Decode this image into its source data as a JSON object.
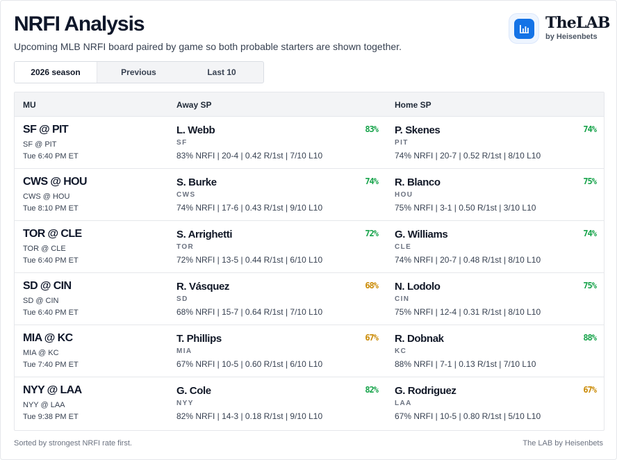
{
  "header": {
    "title": "NRFI Analysis",
    "subtitle": "Upcoming MLB NRFI board paired by game so both probable starters are shown together."
  },
  "brand": {
    "name": "TheLAB",
    "byline": "by Heisenbets",
    "logo_icon": "bar-chart-icon",
    "accent": "#1473e6"
  },
  "tabs": [
    {
      "label": "2026 season",
      "active": true
    },
    {
      "label": "Previous",
      "active": false
    },
    {
      "label": "Last 10",
      "active": false
    }
  ],
  "columns": {
    "mu": "MU",
    "away": "Away SP",
    "home": "Home SP"
  },
  "colors": {
    "good": "#16a34a",
    "fair": "#ca8a04"
  },
  "rows": [
    {
      "matchup": "SF @ PIT",
      "matchup_sub": "SF @ PIT",
      "time": "Tue 6:40 PM ET",
      "away": {
        "name": "L. Webb",
        "team": "SF",
        "pct": "83%",
        "stats": "83% NRFI | 20-4 | 0.42 R/1st | 7/10 L10"
      },
      "home": {
        "name": "P. Skenes",
        "team": "PIT",
        "pct": "74%",
        "stats": "74% NRFI | 20-7 | 0.52 R/1st | 8/10 L10"
      }
    },
    {
      "matchup": "CWS @ HOU",
      "matchup_sub": "CWS @ HOU",
      "time": "Tue 8:10 PM ET",
      "away": {
        "name": "S. Burke",
        "team": "CWS",
        "pct": "74%",
        "stats": "74% NRFI | 17-6 | 0.43 R/1st | 9/10 L10"
      },
      "home": {
        "name": "R. Blanco",
        "team": "HOU",
        "pct": "75%",
        "stats": "75% NRFI | 3-1 | 0.50 R/1st | 3/10 L10"
      }
    },
    {
      "matchup": "TOR @ CLE",
      "matchup_sub": "TOR @ CLE",
      "time": "Tue 6:40 PM ET",
      "away": {
        "name": "S. Arrighetti",
        "team": "TOR",
        "pct": "72%",
        "stats": "72% NRFI | 13-5 | 0.44 R/1st | 6/10 L10"
      },
      "home": {
        "name": "G. Williams",
        "team": "CLE",
        "pct": "74%",
        "stats": "74% NRFI | 20-7 | 0.48 R/1st | 8/10 L10"
      }
    },
    {
      "matchup": "SD @ CIN",
      "matchup_sub": "SD @ CIN",
      "time": "Tue 6:40 PM ET",
      "away": {
        "name": "R. Vásquez",
        "team": "SD",
        "pct": "68%",
        "stats": "68% NRFI | 15-7 | 0.64 R/1st | 7/10 L10"
      },
      "home": {
        "name": "N. Lodolo",
        "team": "CIN",
        "pct": "75%",
        "stats": "75% NRFI | 12-4 | 0.31 R/1st | 8/10 L10"
      }
    },
    {
      "matchup": "MIA @ KC",
      "matchup_sub": "MIA @ KC",
      "time": "Tue 7:40 PM ET",
      "away": {
        "name": "T. Phillips",
        "team": "MIA",
        "pct": "67%",
        "stats": "67% NRFI | 10-5 | 0.60 R/1st | 6/10 L10"
      },
      "home": {
        "name": "R. Dobnak",
        "team": "KC",
        "pct": "88%",
        "stats": "88% NRFI | 7-1 | 0.13 R/1st | 7/10 L10"
      }
    },
    {
      "matchup": "NYY @ LAA",
      "matchup_sub": "NYY @ LAA",
      "time": "Tue 9:38 PM ET",
      "away": {
        "name": "G. Cole",
        "team": "NYY",
        "pct": "82%",
        "stats": "82% NRFI | 14-3 | 0.18 R/1st | 9/10 L10"
      },
      "home": {
        "name": "G. Rodriguez",
        "team": "LAA",
        "pct": "67%",
        "stats": "67% NRFI | 10-5 | 0.80 R/1st | 5/10 L10"
      }
    }
  ],
  "footer": {
    "note": "Sorted by strongest NRFI rate first.",
    "credit": "The LAB by Heisenbets"
  }
}
